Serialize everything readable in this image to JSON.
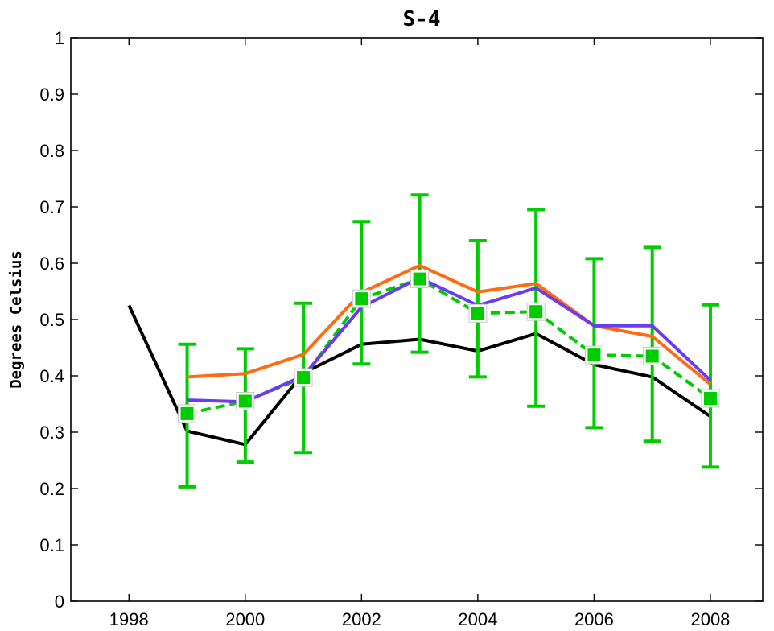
{
  "chart_data": {
    "type": "line",
    "title": "S-4",
    "xlabel": "",
    "ylabel": "Degrees Celsius",
    "xlim": [
      1997.0,
      2008.9
    ],
    "ylim": [
      0,
      1
    ],
    "x_ticks": [
      "1998",
      "2000",
      "2002",
      "2004",
      "2006",
      "2008"
    ],
    "y_ticks": [
      "0",
      "0.1",
      "0.2",
      "0.3",
      "0.4",
      "0.5",
      "0.6",
      "0.7",
      "0.8",
      "0.9",
      "1"
    ],
    "grid": false,
    "series": [
      {
        "color": "#000000",
        "x": [
          1998,
          1999,
          2000,
          2001,
          2002,
          2003,
          2004,
          2005,
          2006,
          2007,
          2008
        ],
        "y": [
          0.525,
          0.302,
          0.278,
          0.405,
          0.456,
          0.465,
          0.444,
          0.475,
          0.42,
          0.398,
          0.328
        ]
      },
      {
        "color": "#ff6a13",
        "x": [
          1999,
          2000,
          2001,
          2002,
          2003,
          2004,
          2005,
          2006,
          2007,
          2008
        ],
        "y": [
          0.398,
          0.404,
          0.438,
          0.548,
          0.596,
          0.549,
          0.564,
          0.489,
          0.47,
          0.385
        ]
      },
      {
        "color": "#6a3cf0",
        "x": [
          1999,
          2000,
          2001,
          2002,
          2003,
          2004,
          2005,
          2006,
          2007,
          2008
        ],
        "y": [
          0.357,
          0.354,
          0.4,
          0.522,
          0.574,
          0.525,
          0.556,
          0.489,
          0.489,
          0.392
        ]
      },
      {
        "color": "#00cc00",
        "marker": "square",
        "x": [
          1999,
          2000,
          2001,
          2002,
          2003,
          2004,
          2005,
          2006,
          2007,
          2008
        ],
        "y": [
          0.333,
          0.355,
          0.397,
          0.537,
          0.572,
          0.511,
          0.514,
          0.437,
          0.435,
          0.36
        ],
        "err_low": [
          0.203,
          0.247,
          0.264,
          0.421,
          0.442,
          0.398,
          0.346,
          0.308,
          0.284,
          0.238
        ],
        "err_high": [
          0.456,
          0.448,
          0.529,
          0.674,
          0.721,
          0.64,
          0.695,
          0.608,
          0.628,
          0.526
        ]
      }
    ]
  }
}
